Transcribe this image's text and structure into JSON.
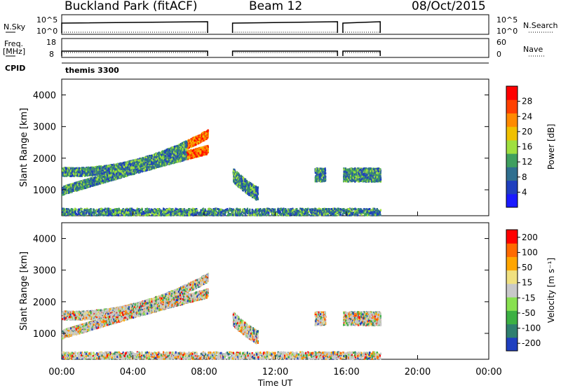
{
  "header": {
    "station": "Buckland Park (fitACF)",
    "beam": "Beam 12",
    "date": "08/Oct/2015"
  },
  "panels": {
    "nsky_label": "N.Sky",
    "nsky_ticks": [
      "10^5",
      "10^0"
    ],
    "nsearch_label": "N.Search",
    "freq_label_1": "Freq.",
    "freq_label_2": "[MHz]",
    "freq_ticks": [
      "18",
      "8"
    ],
    "nave_ticks": [
      "60",
      "0"
    ],
    "nave_label": "Nave",
    "cpid_label": "CPID",
    "cpid_value": "themis 3300"
  },
  "colors": {
    "power": [
      "#1a1aff",
      "#1f3fbf",
      "#2f6f8f",
      "#3f9f5f",
      "#9fdf3f",
      "#f0c000",
      "#ff8a00",
      "#ff4000",
      "#ff0000"
    ],
    "velocity": [
      "#ff0000",
      "#ff6a00",
      "#ffa500",
      "#f0e080",
      "#c8c8c8",
      "#88e050",
      "#3cb043",
      "#2f7f6f",
      "#1f3fbf"
    ]
  },
  "chart_data": [
    {
      "type": "heatmap",
      "title": "",
      "xlabel": "Time UT",
      "ylabel": "Slant Range [km]",
      "x_ticks": [
        "00:00",
        "04:00",
        "08:00",
        "12:00",
        "16:00",
        "20:00",
        "00:00"
      ],
      "y_ticks": [
        "1000",
        "2000",
        "3000",
        "4000"
      ],
      "xlim_hours": [
        0,
        24
      ],
      "ylim_km": [
        180,
        4500
      ],
      "colorbar_label": "Power [dB]",
      "colorbar_ticks": [
        "4",
        "8",
        "12",
        "16",
        "20",
        "24",
        "28"
      ],
      "colorbar_range": [
        0,
        32
      ],
      "data_segments_hours": [
        [
          0.0,
          8.2
        ],
        [
          9.6,
          15.5
        ],
        [
          15.8,
          17.9
        ]
      ],
      "echo_bands": [
        {
          "x_hours": [
            0.0,
            8.2
          ],
          "range_km": [
            1000,
            1700,
            2300
          ],
          "note": ""
        },
        {
          "x_hours": [
            0.0,
            8.2
          ],
          "range_km": [
            1600,
            1500,
            2800
          ]
        },
        {
          "x_hours": [
            9.6,
            11.0
          ],
          "range_km": [
            1500,
            1100,
            900
          ]
        },
        {
          "x_hours": [
            14.2,
            14.8
          ],
          "range_km": [
            1500,
            1500,
            1500
          ]
        },
        {
          "x_hours": [
            15.8,
            17.9
          ],
          "range_km": [
            1500,
            1500,
            1500
          ]
        },
        {
          "x_hours": [
            0.0,
            17.9
          ],
          "range_km": [
            300,
            300,
            300
          ]
        }
      ]
    },
    {
      "type": "heatmap",
      "title": "",
      "xlabel": "Time UT",
      "ylabel": "Slant Range [km]",
      "x_ticks": [
        "00:00",
        "04:00",
        "08:00",
        "12:00",
        "16:00",
        "20:00",
        "00:00"
      ],
      "y_ticks": [
        "1000",
        "2000",
        "3000",
        "4000"
      ],
      "xlim_hours": [
        0,
        24
      ],
      "ylim_km": [
        180,
        4500
      ],
      "colorbar_label": "Velocity [m s⁻¹]",
      "colorbar_ticks": [
        "200",
        "100",
        "50",
        "15",
        "-15",
        "-50",
        "-100",
        "-200"
      ],
      "colorbar_range": [
        -250,
        250
      ]
    }
  ]
}
